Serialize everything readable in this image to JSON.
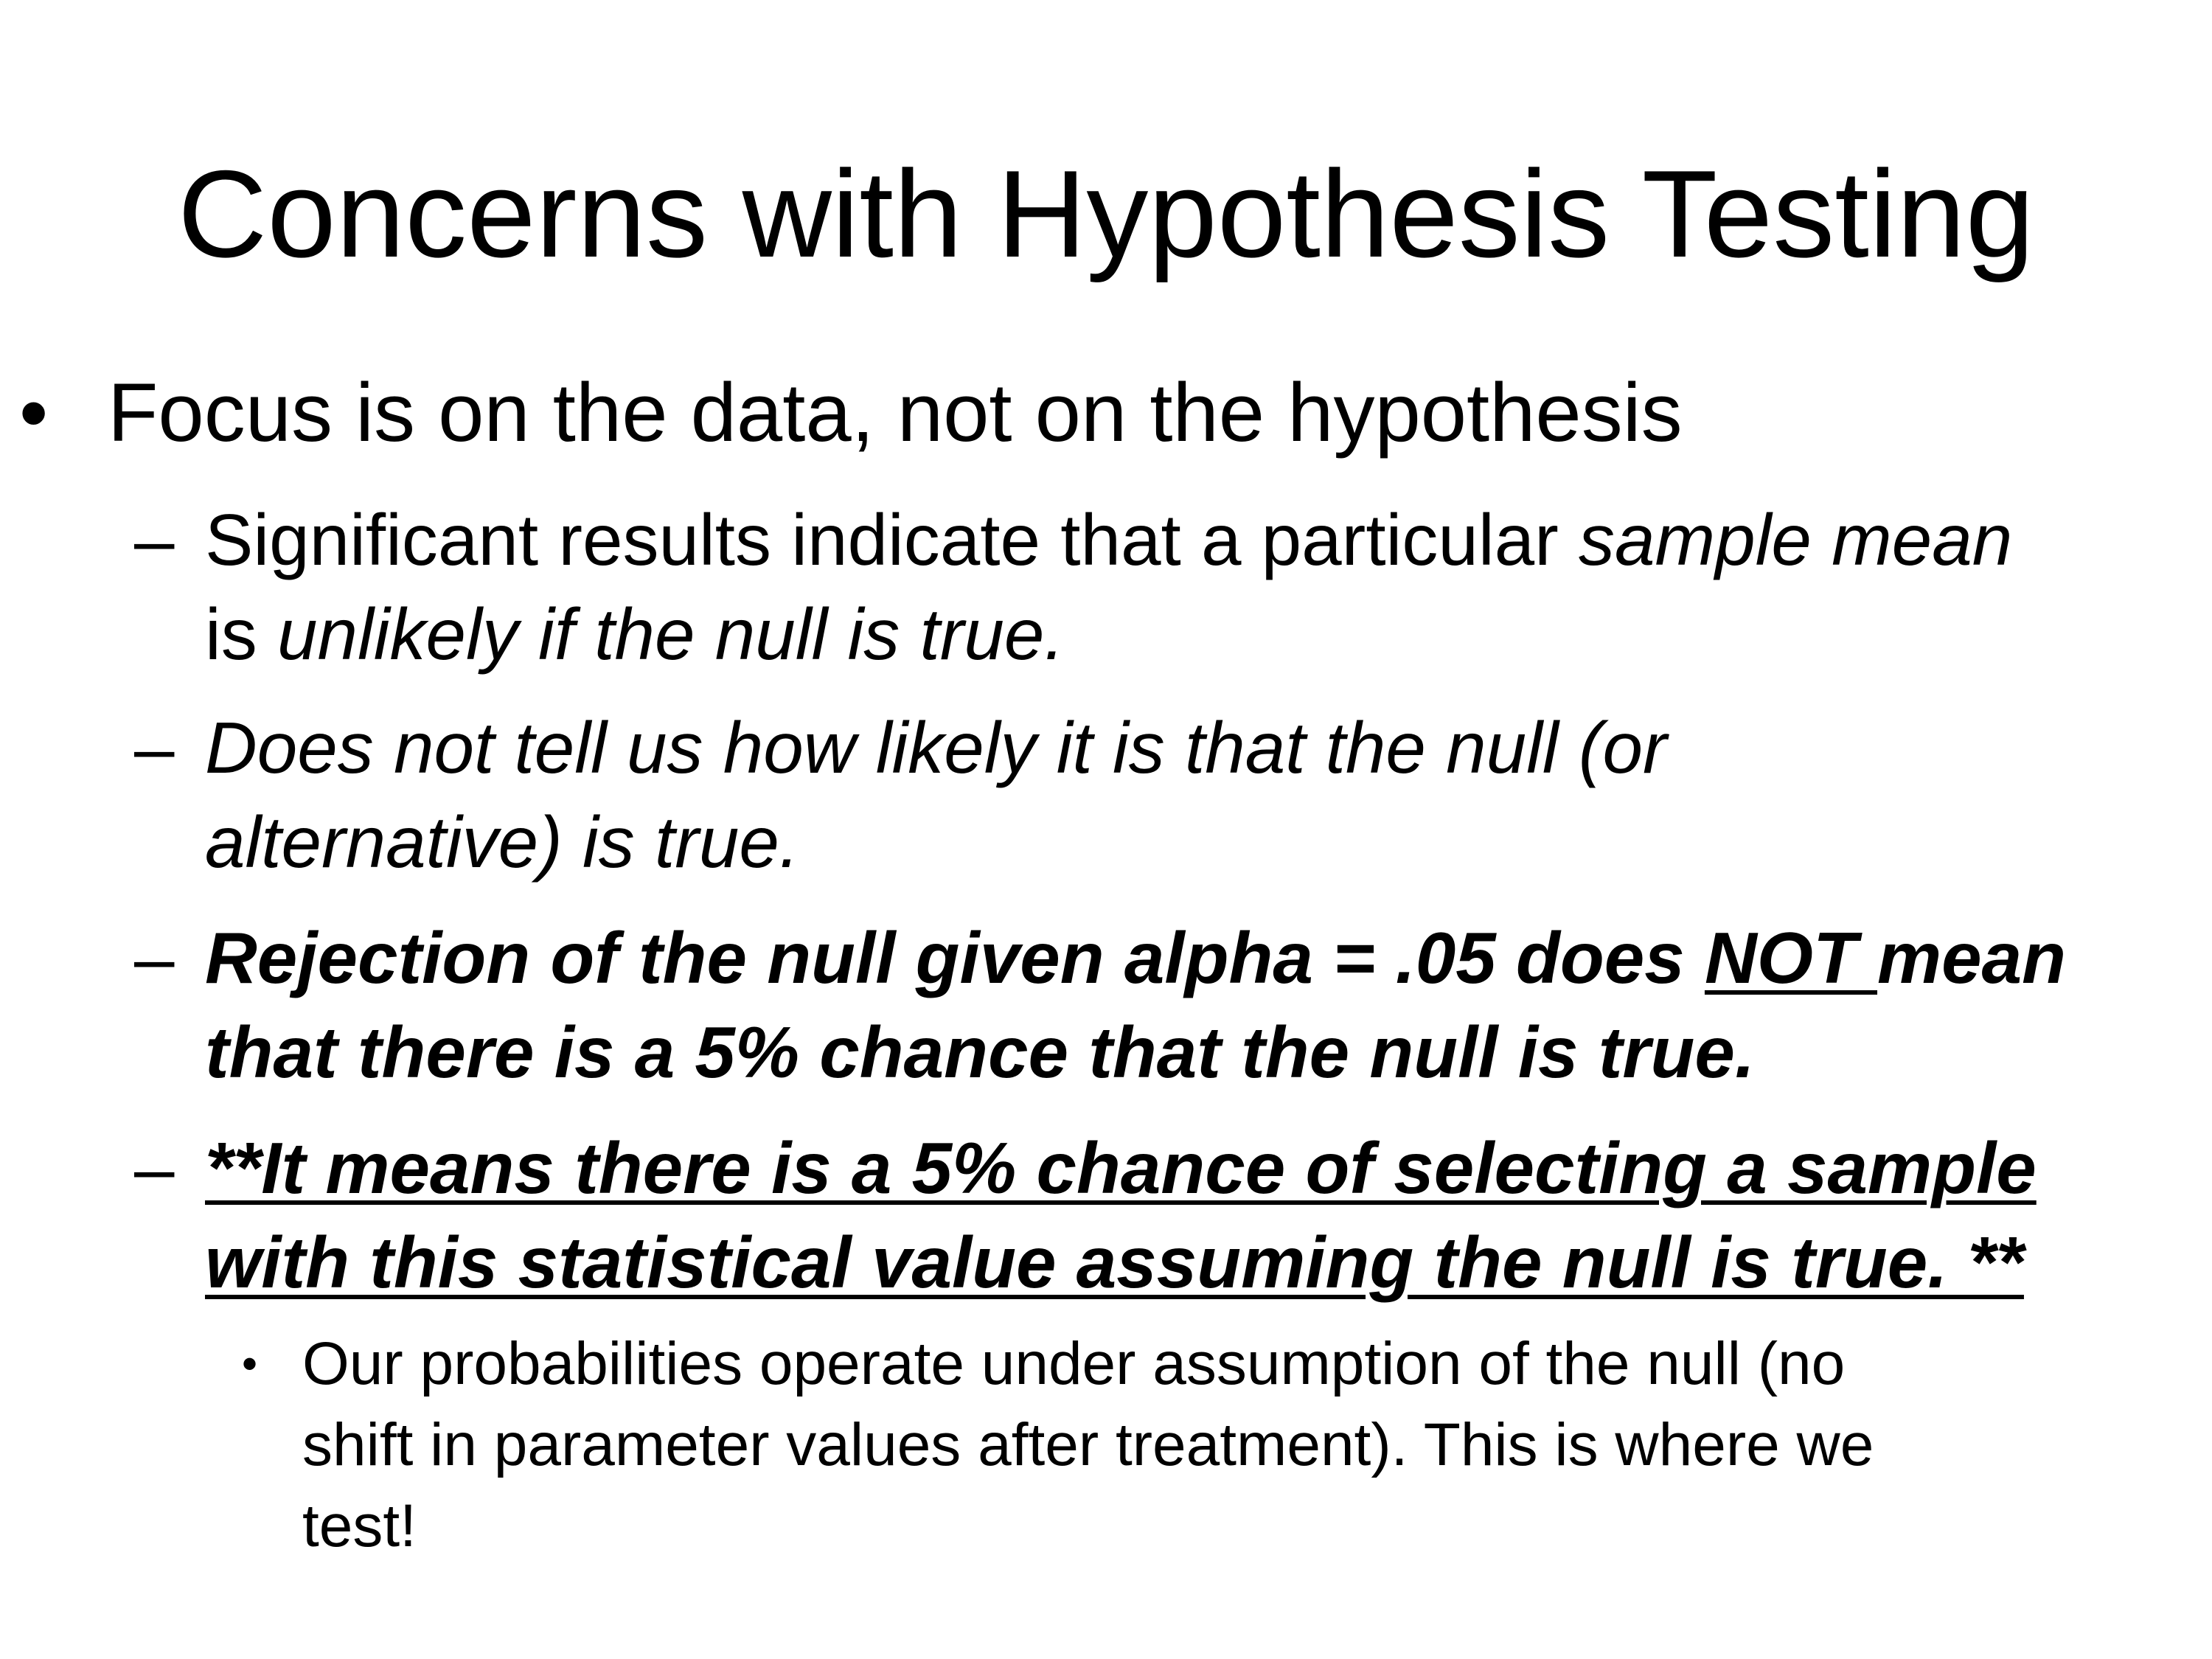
{
  "slide": {
    "title": "Concerns with Hypothesis Testing",
    "bullet1": "Focus is on the data, not on the hypothesis",
    "sub1": {
      "part1": "Significant results indicate that a particular ",
      "part2_italic": "sample mean",
      "part3": "is ",
      "part4_italic": "unlikely if the null is true."
    },
    "sub2": {
      "line1": "Does not tell us how likely it is that the null (or",
      "line2": "alternative) is true."
    },
    "sub3": {
      "part1": "Rejection of the null given alpha = .05 does ",
      "part2_underlined": "NOT ",
      "part3": "mean",
      "line2": "that there is a 5% chance that the null is true."
    },
    "sub4": {
      "line1": "**It means there is a 5% chance of selecting a sample",
      "line2": "with this statistical value assuming the null is true. **"
    },
    "sub4_child": {
      "line1": "Our probabilities operate under assumption of the null (no",
      "line2": "shift in parameter values after treatment). This is where we",
      "line3": "test!"
    },
    "marks": {
      "bullet": "•",
      "dash": "–"
    }
  }
}
